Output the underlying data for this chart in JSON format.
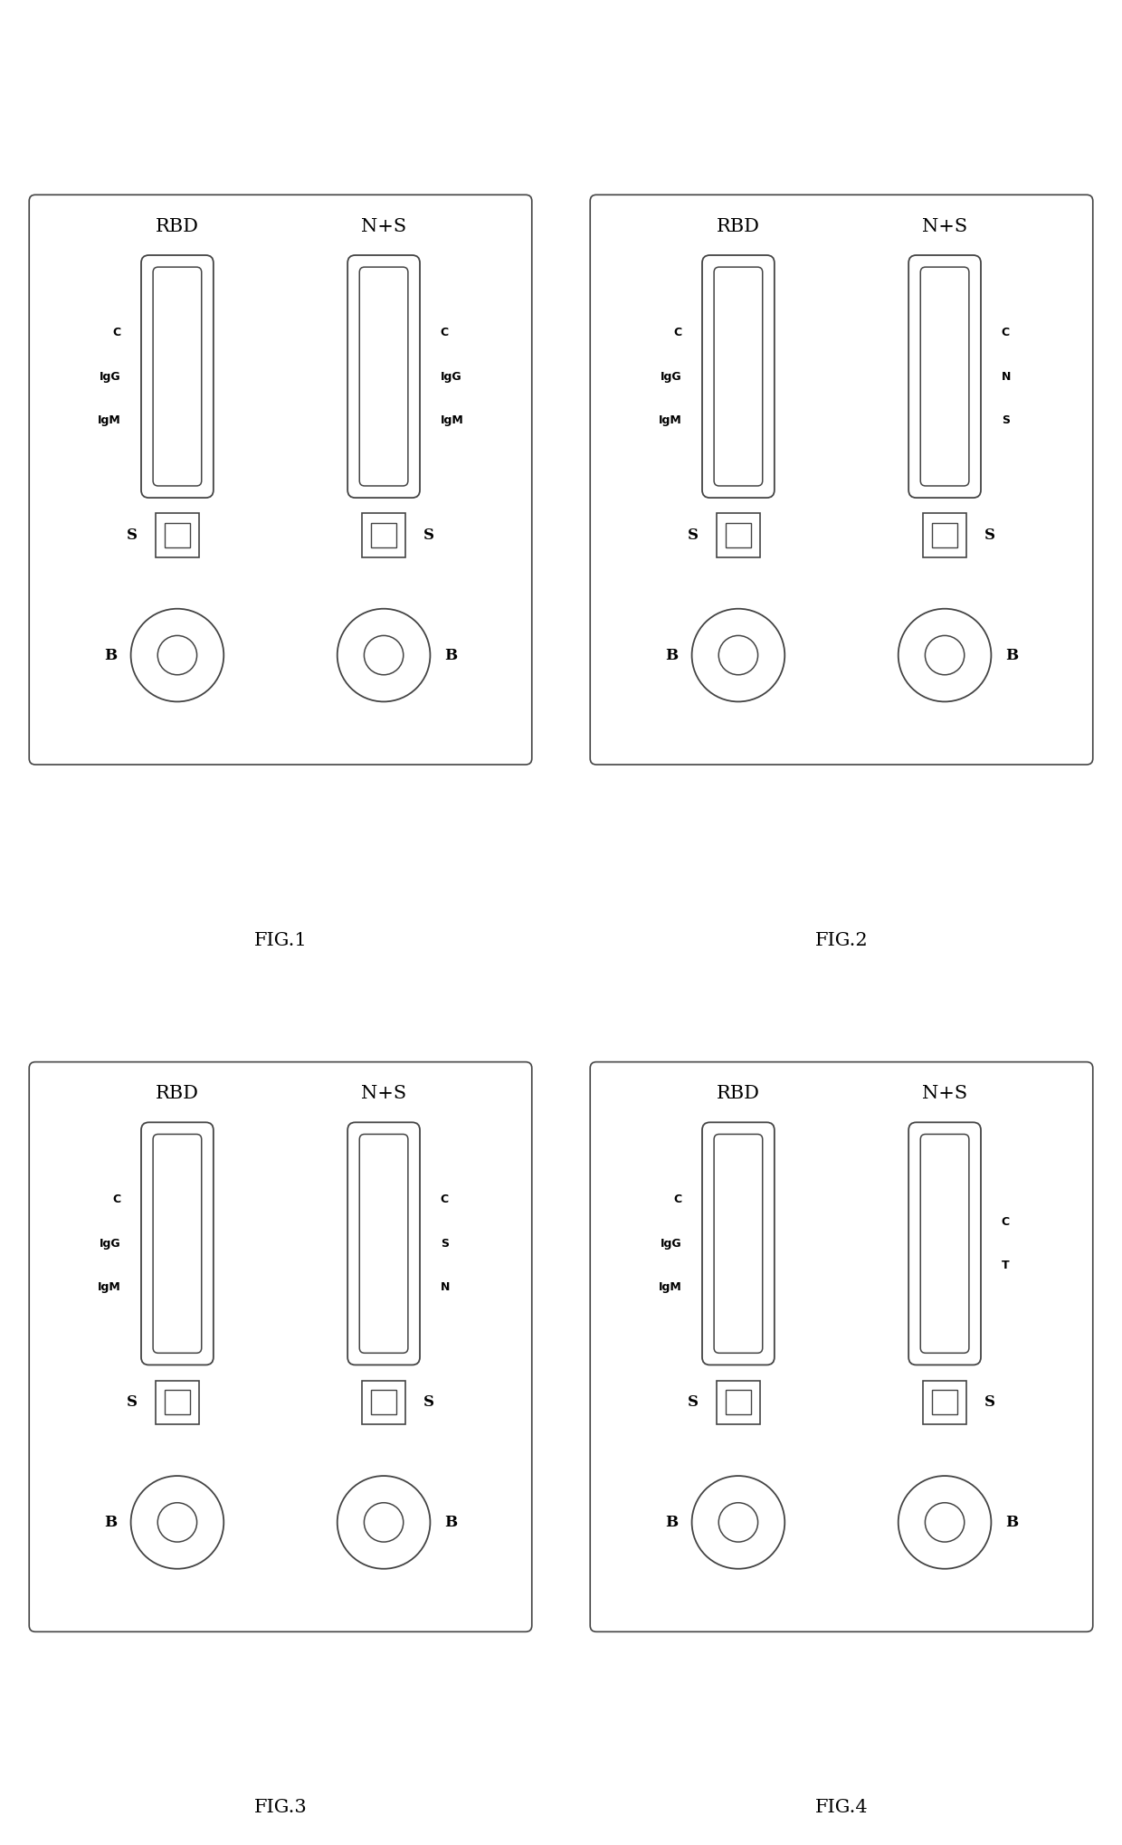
{
  "figures": [
    {
      "label": "FIG.1",
      "left_labels": [
        "C",
        "IgG",
        "IgM"
      ],
      "right_labels": [
        "C",
        "IgG",
        "IgM"
      ],
      "right_labels_side": "right"
    },
    {
      "label": "FIG.2",
      "left_labels": [
        "C",
        "IgG",
        "IgM"
      ],
      "right_labels": [
        "C",
        "N",
        "S"
      ],
      "right_labels_side": "right"
    },
    {
      "label": "FIG.3",
      "left_labels": [
        "C",
        "IgG",
        "IgM"
      ],
      "right_labels": [
        "C",
        "S",
        "N"
      ],
      "right_labels_side": "right"
    },
    {
      "label": "FIG.4",
      "left_labels": [
        "C",
        "IgG",
        "IgM"
      ],
      "right_labels": [
        "C",
        "T"
      ],
      "right_labels_side": "right"
    }
  ],
  "background_color": "#ffffff",
  "border_color": "#444444",
  "text_color": "#000000"
}
